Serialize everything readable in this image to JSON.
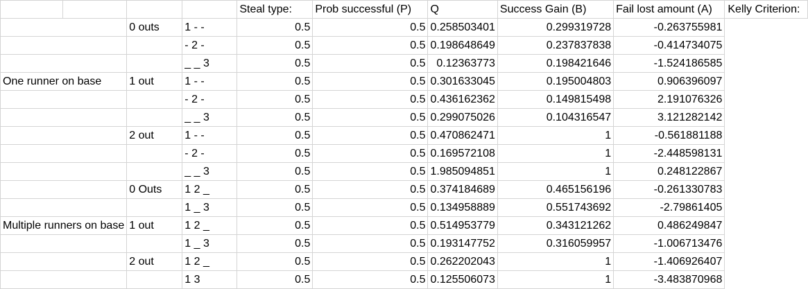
{
  "headers": {
    "a": "",
    "b": "",
    "c": "",
    "d": "Steal type:",
    "e": "Prob successful (P)",
    "f": "Q",
    "g": "Success Gain (B)",
    "h": "Fail lost amount (A)",
    "i": "Kelly Criterion:"
  },
  "rows": [
    {
      "group": "",
      "outs": "0 outs",
      "type": "1 - -",
      "p": "0.5",
      "q": "0.5",
      "b": "0.258503401",
      "a": "0.299319728",
      "k": "-0.263755981"
    },
    {
      "group": "",
      "outs": "",
      "type": " - 2 -",
      "p": "0.5",
      "q": "0.5",
      "b": "0.198648649",
      "a": "0.237837838",
      "k": "-0.414734075"
    },
    {
      "group": "",
      "outs": "",
      "type": "_ _ 3",
      "p": "0.5",
      "q": "0.5",
      "b": "0.12363773",
      "a": "0.198421646",
      "k": "-1.524186585"
    },
    {
      "group": "One runner on base",
      "outs": "1 out",
      "type": "1 - -",
      "p": "0.5",
      "q": "0.5",
      "b": "0.301633045",
      "a": "0.195004803",
      "k": "0.906396097"
    },
    {
      "group": "",
      "outs": "",
      "type": " - 2 -",
      "p": "0.5",
      "q": "0.5",
      "b": "0.436162362",
      "a": "0.149815498",
      "k": "2.191076326"
    },
    {
      "group": "",
      "outs": "",
      "type": "_ _ 3",
      "p": "0.5",
      "q": "0.5",
      "b": "0.299075026",
      "a": "0.104316547",
      "k": "3.121282142"
    },
    {
      "group": "",
      "outs": "2 out",
      "type": "1 - -",
      "p": "0.5",
      "q": "0.5",
      "b": "0.470862471",
      "a": "1",
      "k": "-0.561881188"
    },
    {
      "group": "",
      "outs": "",
      "type": " - 2 -",
      "p": "0.5",
      "q": "0.5",
      "b": "0.169572108",
      "a": "1",
      "k": "-2.448598131"
    },
    {
      "group": "",
      "outs": "",
      "type": "_ _ 3",
      "p": "0.5",
      "q": "0.5",
      "b": "1.985094851",
      "a": "1",
      "k": "0.248122867"
    },
    {
      "group": "",
      "outs": "0 Outs",
      "type": "1 2 _",
      "p": "0.5",
      "q": "0.5",
      "b": "0.374184689",
      "a": "0.465156196",
      "k": "-0.261330783"
    },
    {
      "group": "",
      "outs": "",
      "type": "1 _ 3",
      "p": "0.5",
      "q": "0.5",
      "b": "0.134958889",
      "a": "0.551743692",
      "k": "-2.79861405"
    },
    {
      "group": "Multiple runners on base",
      "outs": "1 out",
      "type": "1 2 _",
      "p": "0.5",
      "q": "0.5",
      "b": "0.514953779",
      "a": "0.343121262",
      "k": "0.486249847"
    },
    {
      "group": "",
      "outs": "",
      "type": "1 _ 3",
      "p": "0.5",
      "q": "0.5",
      "b": "0.193147752",
      "a": "0.316059957",
      "k": "-1.006713476"
    },
    {
      "group": "",
      "outs": "2 out",
      "type": "1 2 _",
      "p": "0.5",
      "q": "0.5",
      "b": "0.262202043",
      "a": "1",
      "k": "-1.406926407"
    },
    {
      "group": "",
      "outs": "",
      "type": "1   3",
      "p": "0.5",
      "q": "0.5",
      "b": "0.125506073",
      "a": "1",
      "k": "-3.483870968"
    }
  ]
}
